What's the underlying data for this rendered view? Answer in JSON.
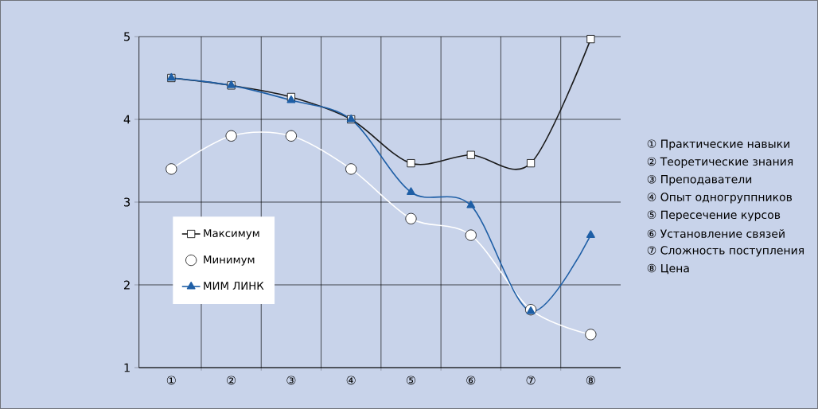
{
  "chart_data": {
    "type": "line",
    "categories": [
      "①",
      "②",
      "③",
      "④",
      "⑤",
      "⑥",
      "⑦",
      "⑧"
    ],
    "series": [
      {
        "name": "Максимум",
        "color": "#1a1a1a",
        "marker": "square",
        "values": [
          4.5,
          4.41,
          4.27,
          4.0,
          3.47,
          3.57,
          3.47,
          4.97
        ]
      },
      {
        "name": "Минимум",
        "color": "#ffffff",
        "marker": "circle",
        "values": [
          3.4,
          3.8,
          3.8,
          3.4,
          2.8,
          2.6,
          1.7,
          1.4
        ]
      },
      {
        "name": "МИМ ЛИНК",
        "color": "#1f5fa6",
        "marker": "triangle",
        "values": [
          4.5,
          4.41,
          4.23,
          4.0,
          3.12,
          2.96,
          1.68,
          2.6
        ]
      }
    ],
    "ylim": [
      1,
      5
    ],
    "yticks": [
      1,
      2,
      3,
      4,
      5
    ],
    "grid": true,
    "legend": "left",
    "annotations": [
      "① Практические навыки",
      "② Теоретические знания",
      "③ Преподаватели",
      "④ Опыт одногруппников",
      "⑤ Пересечение курсов",
      "⑥ Установление связей",
      "⑦ Сложность поступления",
      "⑧ Цена"
    ]
  }
}
